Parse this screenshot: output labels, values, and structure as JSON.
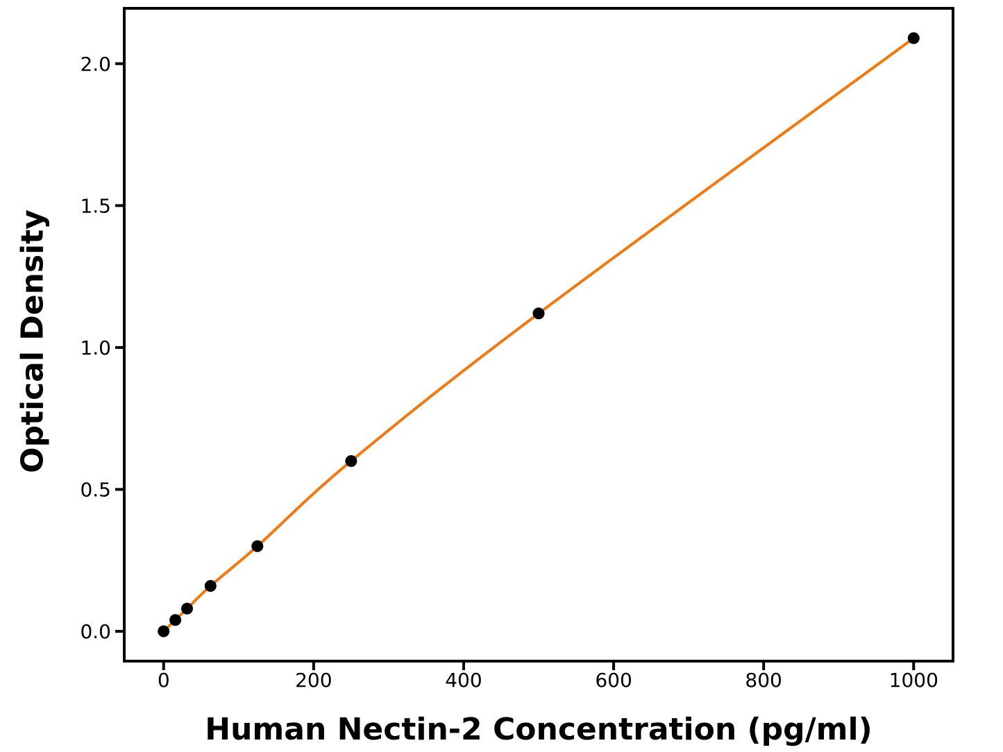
{
  "chart_data": {
    "type": "line",
    "title": "",
    "xlabel": "Human Nectin-2 Concentration (pg/ml)",
    "ylabel": "Optical Density",
    "series": [
      {
        "x": [
          0,
          15.6,
          31.25,
          62.5,
          125,
          250,
          500,
          1000
        ],
        "y": [
          0.0,
          0.04,
          0.08,
          0.16,
          0.3,
          0.6,
          1.12,
          2.09
        ],
        "line_color": "#F8770D",
        "marker": "circle",
        "marker_color": "#000000",
        "line_width": 4,
        "marker_radius": 8.5
      }
    ],
    "x_ticks": [
      0,
      200,
      400,
      600,
      800,
      1000
    ],
    "x_tick_labels": [
      "0",
      "200",
      "400",
      "600",
      "800",
      "1000"
    ],
    "y_ticks": [
      0.0,
      0.5,
      1.0,
      1.5,
      2.0
    ],
    "y_tick_labels": [
      "0.0",
      "0.5",
      "1.0",
      "1.5",
      "2.0"
    ],
    "xlim": [
      -52.5,
      1052.5
    ],
    "ylim": [
      -0.105,
      2.195
    ],
    "grid": false,
    "legend": "none",
    "axis_color": "#000000",
    "tick_label_color": "#000000",
    "background_color": "#FFFFFF"
  }
}
